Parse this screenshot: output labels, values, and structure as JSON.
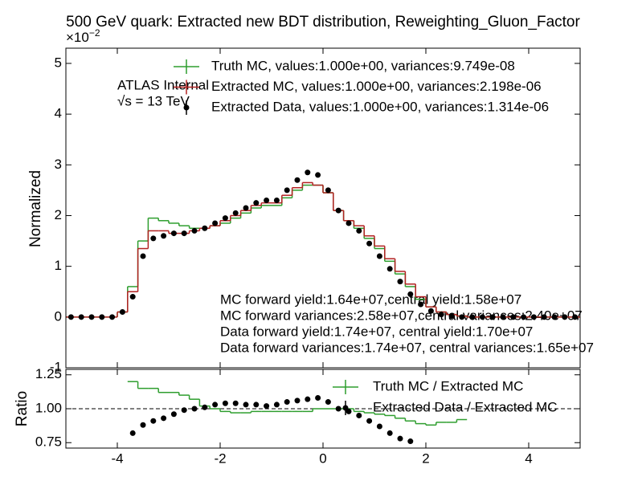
{
  "chart_data": [
    {
      "type": "histogram",
      "title": "500 GeV quark: Extracted new BDT distribution, Reweighting_Gluon_Factor",
      "y_label": "Normalized",
      "y_multiplier_base": "×10",
      "y_multiplier_exponent": "−2",
      "annotations": [
        "ATLAS Internal",
        "√s = 13 TeV",
        "MC forward yield:1.64e+07,central yield:1.58e+07",
        "MC forward variances:2.58e+07,central variances:2.40e+07",
        "Data forward yield:1.74e+07, central yield:1.70e+07",
        "Data forward variances:1.74e+07, central variances:1.65e+07"
      ],
      "bins": [
        -5,
        -4.8,
        -4.6,
        -4.4,
        -4.2,
        -4,
        -3.8,
        -3.6,
        -3.4,
        -3.2,
        -3,
        -2.8,
        -2.6,
        -2.4,
        -2.2,
        -2,
        -1.8,
        -1.6,
        -1.4,
        -1.2,
        -1,
        -0.8,
        -0.6,
        -0.4,
        -0.2,
        0,
        0.2,
        0.4,
        0.6,
        0.8,
        1,
        1.2,
        1.4,
        1.6,
        1.8,
        2,
        2.2,
        2.4,
        2.6,
        2.8,
        3,
        3.2,
        3.4,
        3.6,
        3.8,
        4,
        4.2,
        4.4,
        4.6,
        4.8,
        5
      ],
      "xlim": [
        -5,
        5
      ],
      "xticks": [
        -4,
        -2,
        0,
        2,
        4
      ],
      "ylim": [
        -1,
        5.3
      ],
      "yticks": [
        -1,
        0,
        1,
        2,
        3,
        4,
        5
      ],
      "series": [
        {
          "name": "Truth MC, values:1.000e+00, variances:9.749e-08",
          "color": "#2e9e2e",
          "style": "step",
          "values": [
            0,
            0,
            0,
            0,
            0,
            0.1,
            0.6,
            1.5,
            1.95,
            1.9,
            1.85,
            1.8,
            1.75,
            1.75,
            1.8,
            1.85,
            1.95,
            2.05,
            2.15,
            2.2,
            2.2,
            2.35,
            2.5,
            2.6,
            2.6,
            2.45,
            2.1,
            1.9,
            1.75,
            1.55,
            1.35,
            1.1,
            0.85,
            0.6,
            0.35,
            0.2,
            0.1,
            0.05,
            0.02,
            0,
            0,
            0,
            0,
            0,
            0,
            0,
            0,
            0,
            0,
            0
          ]
        },
        {
          "name": "Extracted MC, values:1.000e+00, variances:2.198e-06",
          "color": "#b22222",
          "style": "step",
          "values": [
            0,
            0,
            0,
            0,
            0,
            0.1,
            0.5,
            1.35,
            1.7,
            1.7,
            1.65,
            1.65,
            1.7,
            1.75,
            1.8,
            1.9,
            2.0,
            2.1,
            2.2,
            2.25,
            2.25,
            2.4,
            2.55,
            2.65,
            2.6,
            2.45,
            2.1,
            1.9,
            1.8,
            1.6,
            1.4,
            1.15,
            0.9,
            0.65,
            0.4,
            0.2,
            0.1,
            0.05,
            0.02,
            0,
            0,
            0,
            0,
            0,
            0,
            0,
            0,
            0,
            0,
            0
          ]
        },
        {
          "name": "Extracted Data, values:1.000e+00, variances:1.314e-06",
          "color": "#000000",
          "style": "points",
          "values": [
            0,
            0,
            0,
            0,
            0,
            0.1,
            0.4,
            1.2,
            1.55,
            1.6,
            1.65,
            1.65,
            1.7,
            1.75,
            1.85,
            1.95,
            2.05,
            2.15,
            2.25,
            2.3,
            2.3,
            2.5,
            2.7,
            2.85,
            2.8,
            2.5,
            2.1,
            1.85,
            1.7,
            1.45,
            1.2,
            0.95,
            0.7,
            0.45,
            0.25,
            0.12,
            0.05,
            0.02,
            0,
            0,
            0,
            0,
            0,
            0,
            0,
            0,
            0,
            0,
            0,
            0
          ]
        }
      ]
    },
    {
      "type": "histogram",
      "y_label": "Ratio",
      "bins": [
        -5,
        -4.8,
        -4.6,
        -4.4,
        -4.2,
        -4,
        -3.8,
        -3.6,
        -3.4,
        -3.2,
        -3,
        -2.8,
        -2.6,
        -2.4,
        -2.2,
        -2,
        -1.8,
        -1.6,
        -1.4,
        -1.2,
        -1,
        -0.8,
        -0.6,
        -0.4,
        -0.2,
        0,
        0.2,
        0.4,
        0.6,
        0.8,
        1,
        1.2,
        1.4,
        1.6,
        1.8,
        2,
        2.2,
        2.4,
        2.6,
        2.8,
        3,
        3.2,
        3.4,
        3.6,
        3.8,
        4,
        4.2,
        4.4,
        4.6,
        4.8,
        5
      ],
      "xlim": [
        -5,
        5
      ],
      "xticks": [
        -4,
        -2,
        0,
        2,
        4
      ],
      "ylim": [
        0.71,
        1.29
      ],
      "yticks": [
        {
          "value": 0.75,
          "label": "0.75"
        },
        {
          "value": 1,
          "label": "1.00"
        },
        {
          "value": 1.25,
          "label": "1.25"
        }
      ],
      "reference_line": 1,
      "series": [
        {
          "name": "Truth MC / Extracted MC",
          "color": "#2e9e2e",
          "style": "step",
          "values": [
            null,
            null,
            null,
            null,
            null,
            null,
            1.2,
            1.15,
            1.15,
            1.12,
            1.12,
            1.1,
            1.07,
            1.02,
            1.0,
            0.98,
            0.97,
            0.97,
            0.98,
            0.98,
            0.98,
            0.98,
            0.98,
            0.98,
            1.0,
            1.0,
            1.0,
            1.0,
            0.98,
            0.97,
            0.96,
            0.95,
            0.93,
            0.91,
            0.89,
            0.88,
            0.9,
            0.9,
            0.92,
            null,
            null,
            null,
            null,
            null,
            null,
            null,
            null,
            null,
            null,
            null
          ]
        },
        {
          "name": "Extracted Data / Extracted MC",
          "color": "#000000",
          "style": "points",
          "values": [
            null,
            null,
            null,
            null,
            null,
            null,
            0.82,
            0.88,
            0.91,
            0.93,
            0.96,
            0.99,
            1.0,
            1.01,
            1.03,
            1.04,
            1.04,
            1.03,
            1.03,
            1.02,
            1.03,
            1.05,
            1.06,
            1.07,
            1.08,
            1.05,
            1.0,
            0.98,
            0.95,
            0.91,
            0.87,
            0.82,
            0.78,
            0.76,
            null,
            null,
            null,
            null,
            null,
            null,
            null,
            null,
            null,
            null,
            null,
            null,
            null,
            null,
            null,
            null
          ]
        }
      ]
    }
  ]
}
